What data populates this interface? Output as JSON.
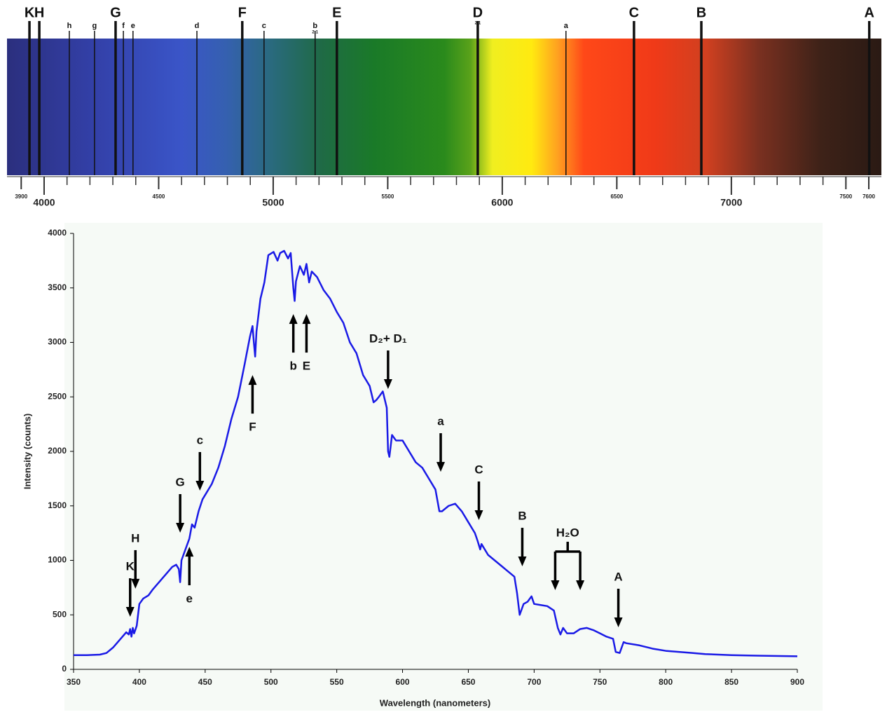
{
  "chart_data": [
    {
      "type": "spectrum",
      "xlim": [
        3838,
        7655
      ],
      "xticks": [
        3900,
        4000,
        4500,
        5000,
        5500,
        6000,
        6500,
        7000,
        7500,
        7600
      ],
      "minor_xticks": [
        3900,
        4000,
        4100,
        4200,
        4300,
        4400,
        4500,
        4600,
        4700,
        4800,
        4900,
        5000,
        5100,
        5200,
        5300,
        5400,
        5500,
        5600,
        5700,
        5800,
        5900,
        6000,
        6100,
        6200,
        6300,
        6400,
        6500,
        6600,
        6700,
        6800,
        6900,
        7000,
        7100,
        7200,
        7300,
        7400,
        7500,
        7600
      ],
      "lines": [
        {
          "label": "K",
          "value": 3936
        },
        {
          "label": "H",
          "value": 3979
        },
        {
          "label": "h",
          "value": 4110
        },
        {
          "label": "g",
          "value": 4220
        },
        {
          "label": "G",
          "value": 4312
        },
        {
          "label": "f",
          "value": 4346
        },
        {
          "label": "e",
          "value": 4388
        },
        {
          "label": "d",
          "value": 4667
        },
        {
          "label": "F",
          "value": 4865
        },
        {
          "label": "c",
          "value": 4960
        },
        {
          "label": "b",
          "value": 5183,
          "sublabel": "2-1"
        },
        {
          "label": "E",
          "value": 5278
        },
        {
          "label": "D",
          "value": 5893,
          "sublabel": "2-1"
        },
        {
          "label": "a",
          "value": 6278
        },
        {
          "label": "C",
          "value": 6575
        },
        {
          "label": "B",
          "value": 6869
        },
        {
          "label": "A",
          "value": 7602
        }
      ]
    },
    {
      "type": "line",
      "x_label": "Wavelength (nanometers)",
      "y_label": "Intensity (counts)",
      "color": "#1a1ae6",
      "xlim": [
        350,
        900
      ],
      "ylim": [
        0,
        4000
      ],
      "xticks": [
        350,
        400,
        450,
        500,
        550,
        600,
        650,
        700,
        750,
        800,
        850,
        900
      ],
      "yticks": [
        0,
        500,
        1000,
        1500,
        2000,
        2500,
        3000,
        3500,
        4000
      ],
      "x": [
        350,
        360,
        370,
        375,
        380,
        385,
        390,
        392,
        393,
        394,
        395,
        396,
        398,
        400,
        403,
        407,
        410,
        415,
        420,
        425,
        428,
        430,
        431,
        432,
        435,
        438,
        440,
        442,
        445,
        448,
        450,
        455,
        460,
        465,
        470,
        475,
        480,
        484,
        486,
        487,
        488,
        489,
        492,
        495,
        498,
        502,
        505,
        507,
        510,
        513,
        515,
        517,
        518,
        519,
        522,
        525,
        527,
        529,
        531,
        535,
        540,
        545,
        550,
        555,
        560,
        565,
        570,
        575,
        578,
        580,
        582,
        585,
        588,
        589,
        590,
        592,
        595,
        600,
        605,
        610,
        615,
        620,
        625,
        628,
        630,
        635,
        640,
        645,
        650,
        655,
        657,
        659,
        660,
        665,
        670,
        675,
        680,
        685,
        687,
        689,
        692,
        695,
        698,
        700,
        705,
        710,
        715,
        718,
        720,
        722,
        725,
        730,
        735,
        740,
        745,
        750,
        755,
        760,
        762,
        765,
        768,
        770,
        780,
        790,
        800,
        810,
        820,
        830,
        850,
        870,
        900
      ],
      "values": [
        130,
        130,
        135,
        150,
        200,
        270,
        340,
        320,
        370,
        300,
        380,
        330,
        400,
        600,
        650,
        680,
        730,
        800,
        870,
        940,
        960,
        920,
        800,
        1000,
        1100,
        1200,
        1330,
        1300,
        1450,
        1560,
        1600,
        1700,
        1850,
        2050,
        2300,
        2500,
        2800,
        3050,
        3150,
        3000,
        2870,
        3100,
        3400,
        3550,
        3800,
        3830,
        3750,
        3820,
        3840,
        3770,
        3820,
        3500,
        3380,
        3560,
        3700,
        3620,
        3720,
        3550,
        3650,
        3600,
        3480,
        3400,
        3280,
        3180,
        3000,
        2900,
        2700,
        2600,
        2450,
        2470,
        2500,
        2550,
        2400,
        2000,
        1950,
        2150,
        2100,
        2100,
        2000,
        1900,
        1850,
        1750,
        1650,
        1450,
        1450,
        1500,
        1520,
        1450,
        1350,
        1250,
        1180,
        1100,
        1150,
        1050,
        1000,
        950,
        900,
        850,
        700,
        500,
        600,
        620,
        670,
        600,
        590,
        580,
        540,
        380,
        320,
        380,
        330,
        330,
        370,
        380,
        360,
        330,
        300,
        280,
        160,
        150,
        250,
        240,
        220,
        190,
        170,
        160,
        150,
        140,
        130,
        125,
        120
      ],
      "annotations": [
        {
          "text": "K",
          "x": 393,
          "y": 482,
          "direction": "down"
        },
        {
          "text": "H",
          "x": 397,
          "y": 740,
          "direction": "down"
        },
        {
          "text": "G",
          "x": 431,
          "y": 1254,
          "direction": "down"
        },
        {
          "text": "e",
          "x": 438,
          "y": 1125,
          "direction": "up"
        },
        {
          "text": "c",
          "x": 446,
          "y": 1640,
          "direction": "down"
        },
        {
          "text": "F",
          "x": 486,
          "y": 2700,
          "direction": "up"
        },
        {
          "text": "b",
          "x": 517,
          "y": 3260,
          "direction": "up"
        },
        {
          "text": "E",
          "x": 527,
          "y": 3260,
          "direction": "up"
        },
        {
          "text": "D₂+ D₁",
          "x": 589,
          "y": 2572,
          "direction": "down"
        },
        {
          "text": "a",
          "x": 629,
          "y": 1813,
          "direction": "down"
        },
        {
          "text": "C",
          "x": 658,
          "y": 1370,
          "direction": "down"
        },
        {
          "text": "B",
          "x": 691,
          "y": 945,
          "direction": "down"
        },
        {
          "text": "H₂O",
          "x": [
            716,
            735
          ],
          "y": 727,
          "direction": "down"
        },
        {
          "text": "A",
          "x": 764,
          "y": 386,
          "direction": "down"
        }
      ]
    }
  ]
}
